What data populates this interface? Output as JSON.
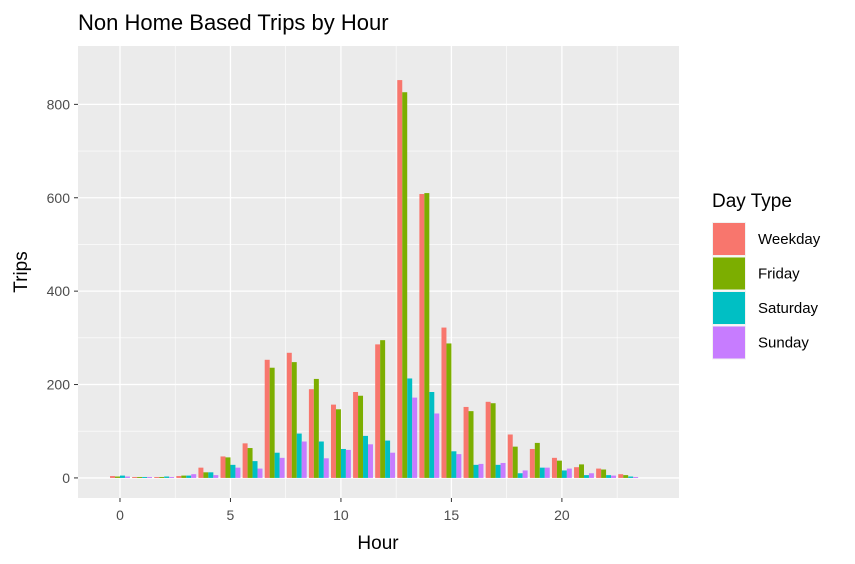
{
  "chart_data": {
    "type": "bar",
    "title": "Non Home Based Trips by Hour",
    "xlabel": "Hour",
    "ylabel": "Trips",
    "xlim": [
      -1.9,
      25.3
    ],
    "ylim": [
      -43,
      925
    ],
    "x_ticks": [
      0,
      5,
      10,
      15,
      20
    ],
    "y_ticks": [
      0,
      200,
      400,
      600,
      800
    ],
    "grid": true,
    "legend": {
      "title": "Day Type",
      "position": "right"
    },
    "categories": [
      0,
      1,
      2,
      3,
      4,
      5,
      6,
      7,
      8,
      9,
      10,
      11,
      12,
      13,
      14,
      15,
      16,
      17,
      18,
      19,
      20,
      21,
      22,
      23
    ],
    "series": [
      {
        "name": "Weekday",
        "color": "#F8766D",
        "values": [
          4,
          2,
          2,
          4,
          22,
          46,
          74,
          253,
          268,
          190,
          157,
          184,
          286,
          852,
          608,
          322,
          152,
          163,
          93,
          62,
          43,
          23,
          20,
          8
        ]
      },
      {
        "name": "Friday",
        "color": "#7CAE00",
        "values": [
          3,
          2,
          2,
          5,
          12,
          44,
          64,
          236,
          248,
          212,
          147,
          176,
          295,
          826,
          610,
          288,
          143,
          160,
          67,
          75,
          37,
          29,
          18,
          6
        ]
      },
      {
        "name": "Saturday",
        "color": "#00BFC4",
        "values": [
          5,
          2,
          3,
          5,
          12,
          28,
          36,
          54,
          95,
          78,
          62,
          90,
          80,
          213,
          184,
          57,
          28,
          28,
          10,
          22,
          16,
          6,
          6,
          3
        ]
      },
      {
        "name": "Sunday",
        "color": "#C77CFF",
        "values": [
          3,
          2,
          2,
          8,
          6,
          22,
          20,
          43,
          78,
          42,
          60,
          72,
          54,
          172,
          138,
          51,
          30,
          32,
          16,
          22,
          20,
          10,
          5,
          2
        ]
      }
    ]
  }
}
